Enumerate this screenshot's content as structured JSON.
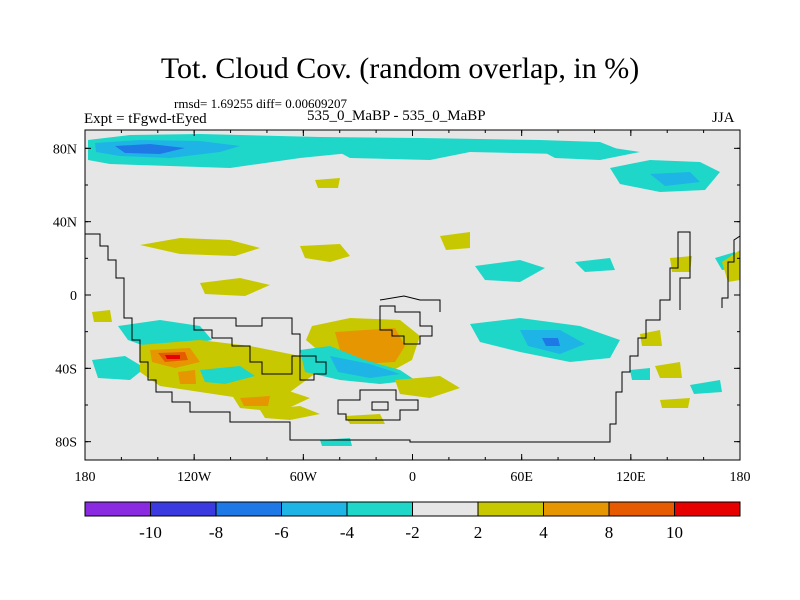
{
  "title": "Tot. Cloud Cov. (random overlap, in %)",
  "stats_text": "rmsd= 1.69255 diff= 0.00609207",
  "experiment_text": "Expt = tFgwd-tEyed",
  "center_text": "535_0_MaBP - 535_0_MaBP",
  "season": "JJA",
  "chart_data": {
    "type": "heatmap",
    "title": "Tot. Cloud Cov. (random overlap, in %)",
    "xlim": [
      -180,
      180
    ],
    "ylim": [
      -90,
      90
    ],
    "x_ticks": [
      {
        "value": -180,
        "label": "180"
      },
      {
        "value": -120,
        "label": "120W"
      },
      {
        "value": -60,
        "label": "60W"
      },
      {
        "value": 0,
        "label": "0"
      },
      {
        "value": 60,
        "label": "60E"
      },
      {
        "value": 120,
        "label": "120E"
      },
      {
        "value": 180,
        "label": "180"
      }
    ],
    "y_ticks": [
      {
        "value": 80,
        "label": "80N"
      },
      {
        "value": 40,
        "label": "40N"
      },
      {
        "value": 0,
        "label": "0"
      },
      {
        "value": -40,
        "label": "40S"
      },
      {
        "value": -80,
        "label": "80S"
      }
    ],
    "contour_levels": [
      -10,
      -8,
      -6,
      -4,
      -2,
      2,
      4,
      8,
      10
    ],
    "level_labels": [
      "-10",
      "-8",
      "-6",
      "-4",
      "-2",
      "2",
      "4",
      "8",
      "10"
    ],
    "colors": [
      "#8a2be2",
      "#3a3ae0",
      "#1e78e6",
      "#1eb4e6",
      "#1ed7c8",
      "#e6e6e6",
      "#c8c800",
      "#e69600",
      "#e65a00",
      "#e60000"
    ],
    "background_color": "#e6e6e6",
    "anomaly_regions": [
      {
        "name": "arctic-neg-west",
        "lon": [
          -165,
          -110
        ],
        "lat": [
          80,
          86
        ],
        "level": "-4 to -8"
      },
      {
        "name": "arctic-neg-band",
        "lon": [
          -140,
          -60
        ],
        "lat": [
          78,
          87
        ],
        "level": "-2 to -4"
      },
      {
        "name": "arctic-neg-east",
        "lon": [
          100,
          170
        ],
        "lat": [
          60,
          70
        ],
        "level": "-2 to -4"
      },
      {
        "name": "eq-south-america-pos",
        "lon": [
          -130,
          -60
        ],
        "lat": [
          -50,
          -30
        ],
        "level": "2 to 4"
      },
      {
        "name": "south-america-pos-max",
        "lon": [
          -130,
          -115
        ],
        "lat": [
          -36,
          -30
        ],
        "level": "8 to 10"
      },
      {
        "name": "south-atlantic-pos",
        "lon": [
          -40,
          -5
        ],
        "lat": [
          -35,
          -15
        ],
        "level": "4 to 8"
      },
      {
        "name": "south-atlantic-neg",
        "lon": [
          -45,
          0
        ],
        "lat": [
          -42,
          -32
        ],
        "level": "-2 to -4"
      },
      {
        "name": "indian-ocean-neg",
        "lon": [
          35,
          100
        ],
        "lat": [
          -35,
          -15
        ],
        "level": "-2 to -6"
      }
    ]
  },
  "colorbar": {
    "tick_labels": [
      "-10",
      "-8",
      "-6",
      "-4",
      "-2",
      "2",
      "4",
      "8",
      "10"
    ]
  }
}
